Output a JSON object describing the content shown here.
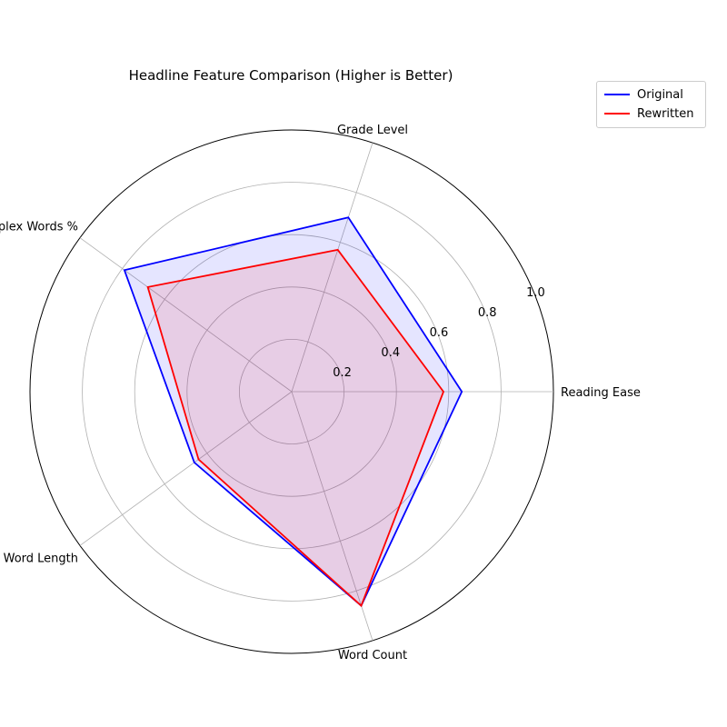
{
  "chart_data": {
    "type": "radar",
    "title": "Headline Feature Comparison (Higher is Better)",
    "axes": [
      "Reading Ease",
      "Grade Level",
      "Complex Words %",
      "Avg Word Length",
      "Word Count"
    ],
    "rlim": [
      0,
      1.0
    ],
    "radial_ticks": [
      "0.2",
      "0.4",
      "0.6",
      "0.8",
      "1.0"
    ],
    "radial_tick_values": [
      0.2,
      0.4,
      0.6,
      0.8,
      1.0
    ],
    "grid": true,
    "legend_position": "top-right",
    "series": [
      {
        "name": "Original",
        "values": [
          0.65,
          0.7,
          0.79,
          0.46,
          0.86
        ],
        "color": "#0000ff",
        "fill": "#0000ff"
      },
      {
        "name": "Rewritten",
        "values": [
          0.58,
          0.57,
          0.68,
          0.44,
          0.86
        ],
        "color": "#ff0000",
        "fill": "#ff0000"
      }
    ]
  }
}
